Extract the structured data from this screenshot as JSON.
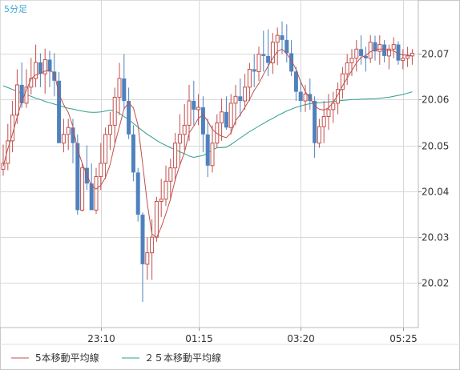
{
  "chart_data": {
    "type": "candlestick",
    "timeframe_label": "5分足",
    "x_tick_labels": [
      "23:10",
      "01:15",
      "03:20",
      "05:25"
    ],
    "y_ticks": [
      20.02,
      20.03,
      20.04,
      20.05,
      20.06,
      20.07
    ],
    "ylim": [
      20.0103,
      20.0817
    ],
    "grid": true,
    "colors": {
      "up": "#c0504d",
      "down": "#4f81bd",
      "ma5": "#c0504d",
      "ma25": "#2e9e8f",
      "grid": "#d8d8d8"
    },
    "candles": [
      [
        20.0448,
        20.0502,
        20.0434,
        20.0461
      ],
      [
        20.0461,
        20.0547,
        20.0446,
        20.051
      ],
      [
        20.051,
        20.0597,
        20.0485,
        20.0566
      ],
      [
        20.0566,
        20.0666,
        20.0547,
        20.0632
      ],
      [
        20.0632,
        20.0681,
        20.0582,
        20.0592
      ],
      [
        20.0592,
        20.0666,
        20.0582,
        20.0627
      ],
      [
        20.0627,
        20.0691,
        20.0611,
        20.0646
      ],
      [
        20.0646,
        20.072,
        20.0627,
        20.0681
      ],
      [
        20.0681,
        20.0701,
        20.0627,
        20.0656
      ],
      [
        20.0656,
        20.0711,
        20.0613,
        20.0687
      ],
      [
        20.0687,
        20.0706,
        20.0627,
        20.0661
      ],
      [
        20.0661,
        20.0701,
        20.0607,
        20.0641
      ],
      [
        20.0641,
        20.066,
        20.0505,
        20.0505
      ],
      [
        20.0505,
        20.0558,
        20.0485,
        20.0524
      ],
      [
        20.0524,
        20.0558,
        20.049,
        20.0539
      ],
      [
        20.0539,
        20.0558,
        20.0461,
        20.0505
      ],
      [
        20.0505,
        20.0524,
        20.0349,
        20.0359
      ],
      [
        20.0359,
        20.0461,
        20.0356,
        20.0451
      ],
      [
        20.0451,
        20.05,
        20.0403,
        20.0417
      ],
      [
        20.0417,
        20.0461,
        20.0359,
        20.0359
      ],
      [
        20.0359,
        20.0451,
        20.0351,
        20.0432
      ],
      [
        20.0432,
        20.0505,
        20.0403,
        20.0461
      ],
      [
        20.0461,
        20.0539,
        20.0427,
        20.0524
      ],
      [
        20.0524,
        20.0573,
        20.049,
        20.0544
      ],
      [
        20.0544,
        20.0626,
        20.0505,
        20.0605
      ],
      [
        20.0605,
        20.068,
        20.0566,
        20.0646
      ],
      [
        20.0646,
        20.0699,
        20.0578,
        20.0597
      ],
      [
        20.0597,
        20.0626,
        20.0514,
        20.0524
      ],
      [
        20.0524,
        20.0544,
        20.0422,
        20.0441
      ],
      [
        20.0441,
        20.0451,
        20.0334,
        20.0349
      ],
      [
        20.0349,
        20.0354,
        20.0159,
        20.0241
      ],
      [
        20.0241,
        20.03,
        20.0207,
        20.0266
      ],
      [
        20.0266,
        20.0339,
        20.0207,
        20.03
      ],
      [
        20.03,
        20.0388,
        20.029,
        20.0378
      ],
      [
        20.0378,
        20.0427,
        20.0344,
        20.0383
      ],
      [
        20.0383,
        20.0456,
        20.0368,
        20.0422
      ],
      [
        20.0422,
        20.0471,
        20.0383,
        20.0451
      ],
      [
        20.0451,
        20.0527,
        20.0422,
        20.0505
      ],
      [
        20.0505,
        20.0568,
        20.0456,
        20.0524
      ],
      [
        20.0524,
        20.059,
        20.049,
        20.0544
      ],
      [
        20.0544,
        20.0632,
        20.051,
        20.0597
      ],
      [
        20.0597,
        20.0641,
        20.0544,
        20.0578
      ],
      [
        20.0578,
        20.0612,
        20.0544,
        20.0583
      ],
      [
        20.0583,
        20.0607,
        20.0485,
        20.0524
      ],
      [
        20.0524,
        20.0558,
        20.0431,
        20.0456
      ],
      [
        20.0456,
        20.0544,
        20.0441,
        20.0505
      ],
      [
        20.0505,
        20.0568,
        20.0495,
        20.0549
      ],
      [
        20.0549,
        20.0602,
        20.051,
        20.0573
      ],
      [
        20.0573,
        20.0607,
        20.0534,
        20.0539
      ],
      [
        20.0539,
        20.0612,
        20.0524,
        20.0592
      ],
      [
        20.0592,
        20.0632,
        20.0544,
        20.0607
      ],
      [
        20.0607,
        20.0646,
        20.0563,
        20.0597
      ],
      [
        20.0597,
        20.0656,
        20.0578,
        20.0627
      ],
      [
        20.0627,
        20.068,
        20.0597,
        20.0666
      ],
      [
        20.0666,
        20.0699,
        20.0627,
        20.0661
      ],
      [
        20.0661,
        20.0715,
        20.0641,
        20.0699
      ],
      [
        20.0699,
        20.075,
        20.0661,
        20.0695
      ],
      [
        20.0695,
        20.0753,
        20.0651,
        20.068
      ],
      [
        20.068,
        20.0745,
        20.0656,
        20.0725
      ],
      [
        20.0725,
        20.0757,
        20.0675,
        20.074
      ],
      [
        20.074,
        20.077,
        20.0699,
        20.073
      ],
      [
        20.073,
        20.0764,
        20.0681,
        20.0701
      ],
      [
        20.0701,
        20.073,
        20.0651,
        20.0661
      ],
      [
        20.0661,
        20.0671,
        20.0597,
        20.0617
      ],
      [
        20.0617,
        20.0641,
        20.0573,
        20.0597
      ],
      [
        20.0597,
        20.0632,
        20.0573,
        20.0612
      ],
      [
        20.0612,
        20.0646,
        20.0578,
        20.0597
      ],
      [
        20.0597,
        20.0607,
        20.0473,
        20.0505
      ],
      [
        20.0505,
        20.0558,
        20.0495,
        20.0541
      ],
      [
        20.0541,
        20.0597,
        20.0505,
        20.0563
      ],
      [
        20.0563,
        20.0612,
        20.0534,
        20.0578
      ],
      [
        20.0578,
        20.0617,
        20.0549,
        20.0592
      ],
      [
        20.0592,
        20.0637,
        20.0568,
        20.0622
      ],
      [
        20.0622,
        20.0671,
        20.0602,
        20.0656
      ],
      [
        20.0656,
        20.0699,
        20.0632,
        20.068
      ],
      [
        20.068,
        20.071,
        20.0651,
        20.069
      ],
      [
        20.069,
        20.073,
        20.0661,
        20.071
      ],
      [
        20.071,
        20.074,
        20.0676,
        20.0695
      ],
      [
        20.0695,
        20.0715,
        20.0661,
        20.069
      ],
      [
        20.069,
        20.074,
        20.068,
        20.0725
      ],
      [
        20.0725,
        20.0739,
        20.0685,
        20.0705
      ],
      [
        20.0705,
        20.074,
        20.0676,
        20.072
      ],
      [
        20.072,
        20.073,
        20.0681,
        20.0695
      ],
      [
        20.0695,
        20.072,
        20.0666,
        20.071
      ],
      [
        20.071,
        20.0736,
        20.069,
        20.072
      ],
      [
        20.072,
        20.0727,
        20.0676,
        20.0685
      ],
      [
        20.0685,
        20.071,
        20.0666,
        20.069
      ],
      [
        20.069,
        20.0715,
        20.0671,
        20.0695
      ],
      [
        20.0695,
        20.071,
        20.0676,
        20.0701
      ],
      [
        20.0701,
        20.072,
        20.068,
        20.069
      ],
      [
        20.069,
        20.071,
        20.0676,
        20.0695
      ],
      [
        20.0695,
        20.072,
        20.0685,
        20.0705
      ]
    ],
    "ma5_values": [
      20.0455,
      20.0493,
      20.0525,
      20.0562,
      20.0596,
      20.0621,
      20.0645,
      20.0654,
      20.0657,
      20.0662,
      20.0664,
      20.0657,
      20.0612,
      20.0589,
      20.0572,
      20.0541,
      20.0491,
      20.0461,
      20.0436,
      20.0412,
      20.0405,
      20.0413,
      20.043,
      20.0458,
      20.0503,
      20.0541,
      20.058,
      20.0593,
      20.0582,
      20.0544,
      20.046,
      20.0373,
      20.0307,
      20.0299,
      20.0322,
      20.0351,
      20.0383,
      20.0425,
      20.0457,
      20.0485,
      20.0527,
      20.0542,
      20.0559,
      20.0567,
      20.0553,
      20.0535,
      20.0526,
      20.052,
      20.0517,
      20.0527,
      20.0554,
      20.0567,
      20.0583,
      20.06,
      20.062,
      20.0635,
      20.0655,
      20.0673,
      20.069,
      20.0705,
      20.071,
      20.07,
      20.0685,
      20.0666,
      20.0639,
      20.0617,
      20.0603,
      20.0586,
      20.0579,
      20.0577,
      20.0582,
      20.0594,
      20.061,
      20.063,
      20.0647,
      20.0663,
      20.068,
      20.0692,
      20.0696,
      20.0704,
      20.0708,
      20.071,
      20.071,
      20.0707,
      20.0706,
      20.07,
      20.0697,
      20.0697,
      20.0695,
      20.0694,
      20.0695,
      20.0697
    ],
    "ma25_values": [
      20.063,
      20.0626,
      20.0622,
      20.0618,
      20.0614,
      20.0611,
      20.0607,
      20.0603,
      20.06,
      20.0596,
      20.0593,
      20.059,
      20.0587,
      20.0584,
      20.0581,
      20.0579,
      20.0577,
      20.0575,
      20.0573,
      20.0572,
      20.0572,
      20.0573,
      20.0575,
      20.0577,
      20.0576,
      20.057,
      20.0563,
      20.0556,
      20.0548,
      20.054,
      20.0532,
      20.0524,
      20.0518,
      20.0511,
      20.0505,
      20.05,
      20.0495,
      20.0491,
      20.0486,
      20.0482,
      20.0477,
      20.0474,
      20.0476,
      20.0478,
      20.0484,
      20.049,
      20.0495,
      20.0495,
      20.0496,
      20.0502,
      20.0509,
      20.0516,
      20.0523,
      20.053,
      20.0536,
      20.0542,
      20.0548,
      20.0554,
      20.0559,
      20.0565,
      20.057,
      20.0575,
      20.0579,
      20.0583,
      20.0586,
      20.0589,
      20.0591,
      20.0592,
      20.0593,
      20.0594,
      20.0595,
      20.0596,
      20.0597,
      20.0598,
      20.0599,
      20.06,
      20.06,
      20.0601,
      20.0601,
      20.0602,
      20.0602,
      20.0603,
      20.0604,
      20.0605,
      20.0607,
      20.0609,
      20.0611,
      20.0614,
      20.0617,
      20.0621,
      20.0625,
      20.0629
    ],
    "legend": [
      {
        "label": "5本移動平均線",
        "color": "#c0504d"
      },
      {
        "label": "２５本移動平均線",
        "color": "#2e9e8f"
      }
    ]
  }
}
